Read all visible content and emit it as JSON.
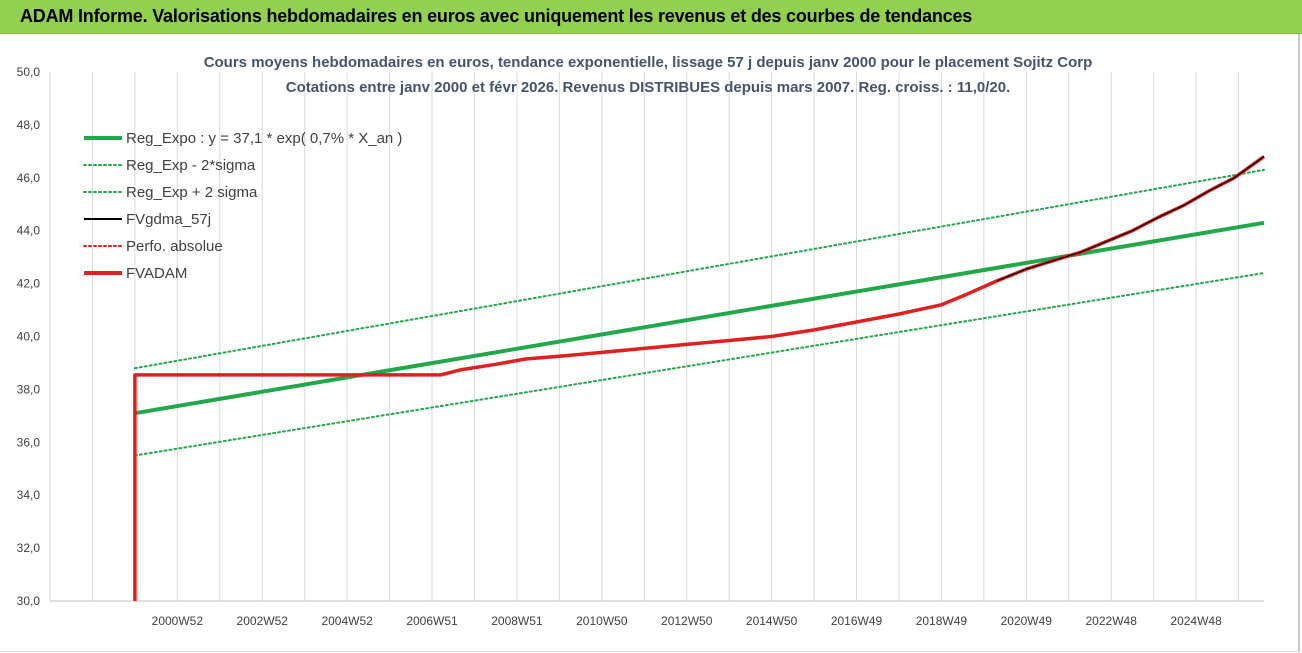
{
  "header": {
    "title": "ADAM Informe. Valorisations hebdomadaires en euros avec uniquement les revenus et des courbes de tendances"
  },
  "chart_data": {
    "type": "line",
    "title_line1": "Cours moyens hebdomadaires en euros, tendance exponentielle, lissage 57 j depuis janv 2000 pour le placement Sojitz Corp",
    "title_line2": "Cotations entre janv 2000 et févr 2026. Revenus DISTRIBUES depuis mars 2007. Reg. croiss. : 11,0/20.",
    "xlabel": "",
    "ylabel": "",
    "x_range": [
      1998.0,
      2026.6
    ],
    "ylim": [
      30,
      50
    ],
    "y_ticks": [
      "30,0",
      "32,0",
      "34,0",
      "36,0",
      "38,0",
      "40,0",
      "42,0",
      "44,0",
      "46,0",
      "48,0",
      "50,0"
    ],
    "x_ticks": [
      {
        "label": "2000W52",
        "x": 2001.0
      },
      {
        "label": "2002W52",
        "x": 2003.0
      },
      {
        "label": "2004W52",
        "x": 2005.0
      },
      {
        "label": "2006W51",
        "x": 2007.0
      },
      {
        "label": "2008W51",
        "x": 2009.0
      },
      {
        "label": "2010W50",
        "x": 2011.0
      },
      {
        "label": "2012W50",
        "x": 2013.0
      },
      {
        "label": "2014W50",
        "x": 2015.0
      },
      {
        "label": "2016W49",
        "x": 2017.0
      },
      {
        "label": "2018W49",
        "x": 2019.0
      },
      {
        "label": "2020W49",
        "x": 2021.0
      },
      {
        "label": "2022W48",
        "x": 2023.0
      },
      {
        "label": "2024W48",
        "x": 2025.0
      }
    ],
    "grid": "vertical",
    "legend_position": "top-left",
    "legend": [
      {
        "name": "Reg_Expo : y = 37,1 * exp( 0,7% *  X_an )",
        "color": "#22a84a",
        "style": "solid-thick"
      },
      {
        "name": "Reg_Exp - 2*sigma",
        "color": "#22a84a",
        "style": "dotted"
      },
      {
        "name": "Reg_Exp + 2 sigma",
        "color": "#22a84a",
        "style": "dotted"
      },
      {
        "name": "FVgdma_57j",
        "color": "#000000",
        "style": "solid"
      },
      {
        "name": "Perfo. absolue",
        "color": "#e02020",
        "style": "dotted"
      },
      {
        "name": "FVADAM",
        "color": "#e02020",
        "style": "solid-thick"
      }
    ],
    "series": [
      {
        "name": "Reg_Expo : y = 37,1 * exp( 0,7% *  X_an )",
        "x": [
          2000.0,
          2026.6
        ],
        "values": [
          37.1,
          44.3
        ]
      },
      {
        "name": "Reg_Exp - 2*sigma",
        "x": [
          2000.0,
          2026.6
        ],
        "values": [
          35.5,
          42.4
        ]
      },
      {
        "name": "Reg_Exp + 2 sigma",
        "x": [
          2000.0,
          2026.6
        ],
        "values": [
          38.8,
          46.3
        ]
      },
      {
        "name": "FVADAM",
        "x": [
          2000.0,
          2000.0,
          2007.2,
          2007.7,
          2008.5,
          2009.2,
          2010.0,
          2011.0,
          2012.0,
          2013.0,
          2014.0,
          2015.0,
          2016.0,
          2017.0,
          2018.0,
          2019.0,
          2019.6,
          2020.3,
          2021.0,
          2021.7,
          2022.3,
          2022.9,
          2023.5,
          2024.1,
          2024.7,
          2025.3,
          2025.9,
          2026.6
        ],
        "values": [
          30.0,
          38.55,
          38.55,
          38.75,
          38.95,
          39.15,
          39.25,
          39.4,
          39.55,
          39.7,
          39.85,
          40.0,
          40.25,
          40.55,
          40.85,
          41.2,
          41.6,
          42.1,
          42.55,
          42.9,
          43.2,
          43.6,
          44.0,
          44.5,
          44.95,
          45.5,
          46.0,
          46.8
        ]
      },
      {
        "name": "FVgdma_57j",
        "x": [
          2020.3,
          2021.0,
          2021.7,
          2022.3,
          2022.9,
          2023.5,
          2024.1,
          2024.7,
          2025.3,
          2025.9,
          2026.6
        ],
        "values": [
          42.1,
          42.55,
          42.9,
          43.2,
          43.6,
          44.0,
          44.5,
          44.95,
          45.5,
          46.0,
          46.8
        ]
      }
    ]
  }
}
